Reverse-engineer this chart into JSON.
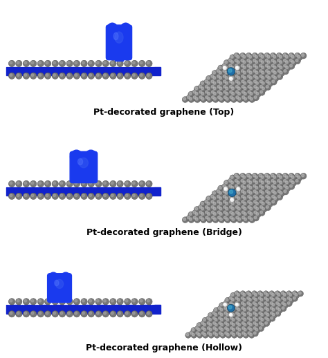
{
  "labels": [
    "Pt-decorated graphene (Top)",
    "Pt-decorated graphene (Bridge)",
    "Pt-decorated graphene (Hollow)"
  ],
  "label_fontsize": 9,
  "label_fontweight": "bold",
  "background_color": "#ffffff",
  "border_color": "#888888",
  "blue_density": "#1a3aee",
  "blue_base": "#1122cc",
  "blue_mid": "#2233dd",
  "carbon_color": "#787878",
  "carbon_dark": "#555555",
  "pt_color": "#1f6fa8",
  "pt_white": "#e8e8e8",
  "bond_color": "#888888"
}
